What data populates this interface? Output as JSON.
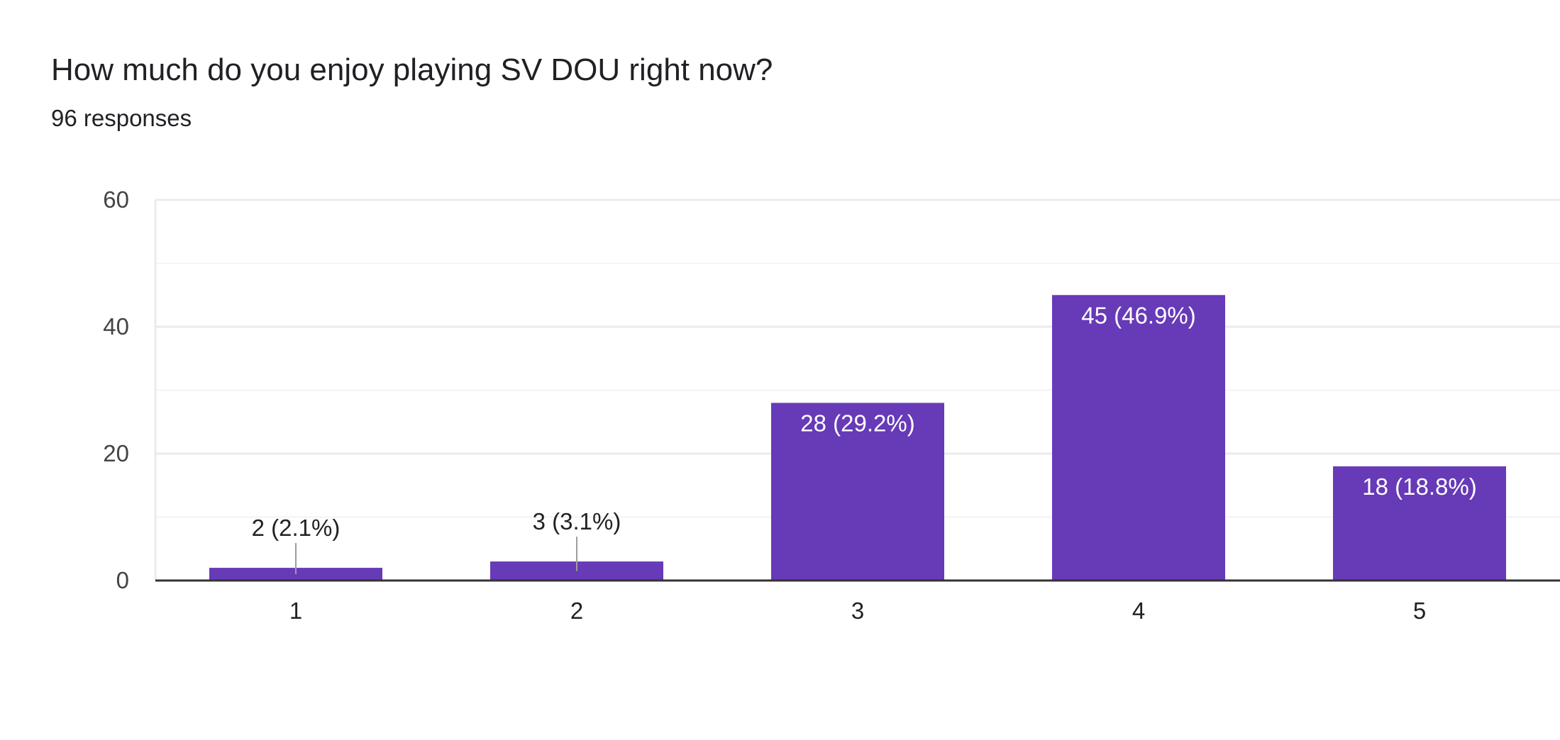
{
  "header": {
    "title": "How much do you enjoy playing SV DOU right now?",
    "responses": "96 responses"
  },
  "colors": {
    "bar": "#673ab7",
    "grid": "#ebebeb",
    "grid_minor": "#f3f3f3",
    "axis": "#333333",
    "tick_label": "#444444",
    "label_inside": "#ffffff",
    "label_outside": "#222222",
    "leader": "#9e9e9e"
  },
  "chart_data": {
    "type": "bar",
    "title": "How much do you enjoy playing SV DOU right now?",
    "categories": [
      "1",
      "2",
      "3",
      "4",
      "5"
    ],
    "values": [
      2,
      3,
      28,
      45,
      18
    ],
    "data_labels": [
      "2 (2.1%)",
      "3 (3.1%)",
      "28 (29.2%)",
      "45 (46.9%)",
      "18 (18.8%)"
    ],
    "ylim": [
      0,
      60
    ],
    "yticks": [
      "0",
      "20",
      "40",
      "60"
    ],
    "minor_gridlines": [
      10,
      30,
      50
    ],
    "grid": true,
    "xlabel": "",
    "ylabel": ""
  }
}
